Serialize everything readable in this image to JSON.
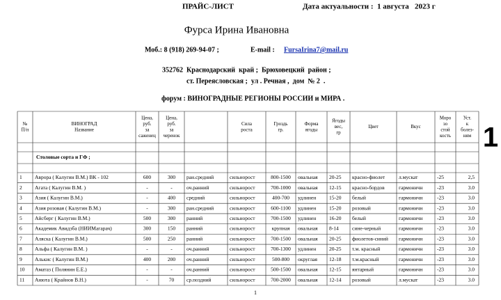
{
  "header": {
    "title": "ПРАЙС-ЛИСТ",
    "date": "Дата актуальности :  1 августа   2023 г",
    "name": "Фурса Ирина Ивановна",
    "phone": "Моб.: 8 (918) 269-94-07 ;",
    "email_label": "E-mail :",
    "email": "FursaIrina7@mail.ru",
    "postcode": "352762",
    "address1": "Краснодарский  край ;  Брюховецкий  район ;",
    "address2": "ст. Переясловская ;  ул . Речная ,  дом  № 2  .",
    "forum": "форум : ВИНОГРАДНЫЕ РЕГИОНЫ РОССИИ и МИРА ."
  },
  "table": {
    "columns": [
      {
        "header": [
          "№",
          "П/п"
        ]
      },
      {
        "header": [
          "ВИНОГРАД",
          "Название"
        ]
      },
      {
        "header": [
          "Цена,",
          "руб.",
          "за",
          "саженец"
        ]
      },
      {
        "header": [
          "Цена,",
          "руб.",
          "за",
          "черенок"
        ]
      },
      {
        "header": []
      },
      {
        "header": [
          "Сила",
          "роста"
        ]
      },
      {
        "header": [
          "Гроздь",
          "гр."
        ]
      },
      {
        "header": [
          "Форма",
          "ягоды"
        ]
      },
      {
        "header": [
          "Ягоды",
          "вес,",
          "гр"
        ]
      },
      {
        "header": [
          "Цвет"
        ]
      },
      {
        "header": [
          "Вкус"
        ]
      },
      {
        "header": [
          "Моро",
          "зо",
          "стой",
          "кость"
        ]
      },
      {
        "header": [
          "Уст.",
          "к",
          "болез-",
          "ням"
        ]
      }
    ],
    "section": "Столовые  сорта и ГФ ;",
    "rows": [
      [
        "1",
        "Аврора  ( Калугин В.М.)  ВК - 102",
        "600",
        "300",
        "ран.средний",
        "сильнорост",
        "800-1500",
        "овальная",
        "20-25",
        "красно-фиолет",
        "л.мускат",
        "-25",
        "2,5"
      ],
      [
        "2",
        "Агата        ( Калугин В.М. )",
        "-",
        "-",
        "оч.ранний",
        "сильнорост",
        "700-1000",
        "овальная",
        "12-15",
        "красно-бордов",
        "гармоничн",
        "-23",
        "3.0"
      ],
      [
        "3",
        "Азия        ( Калугин В.М.)",
        "-",
        "400",
        "средний",
        "сильнорост",
        "400-700",
        "удлинен",
        "15-20",
        "белый",
        "гармоничн",
        "-23",
        "3.0"
      ],
      [
        "4",
        "Азия  розовая  ( Калугин В.М.)",
        "-",
        "300",
        "ран.средний",
        "сильнорост",
        "600-1100",
        "удлинен",
        "15-20",
        "розовый",
        "гармоничн",
        "-23",
        "3.0"
      ],
      [
        "5",
        "Айсберг     ( Калугин В.М.)",
        "500",
        "300",
        "ранний",
        "сильнорост",
        "700-1500",
        "удлинен",
        "16-20",
        "белый",
        "гармоничн",
        "-23",
        "3.0"
      ],
      [
        "6",
        "Академик  Авидзба (НИИМагарач)",
        "300",
        "150",
        "ранний",
        "сильнорост",
        "крупная",
        "овальная",
        "8-14",
        "сине-черный",
        "гармоничн",
        "-23",
        "3.0"
      ],
      [
        "7",
        "Аляска       ( Калугин В.М.)",
        "500",
        "250",
        "ранний",
        "сильнорост",
        "700-1500",
        "овальная",
        "20-25",
        "фиолетов-синий",
        "гармоничн",
        "-23",
        "3.0"
      ],
      [
        "8",
        "Альфа        ( Калугин В.М. )",
        "-",
        "-",
        "оч.ранний",
        "сильнорост",
        "700-1300",
        "удлинен",
        "20-25",
        "т.м. красный",
        "гармоничн",
        "-23",
        "3.0"
      ],
      [
        "9",
        "Алькис     ( Калугин В.М.)",
        "400",
        "200",
        "оч.ранний",
        "сильнорост",
        "500-800",
        "округлая",
        "12-18",
        "т.м.красный",
        "гармоничн",
        "-23",
        "3.0"
      ],
      [
        "10",
        "Аматаз     ( Полянин Е.Е.)",
        "-",
        "-",
        "оч.ранний",
        "сильнорост",
        "500-1500",
        "овальная",
        "12-15",
        "янтарный",
        "гармоничн",
        "-23",
        "3.0"
      ],
      [
        "11",
        "Анюта    ( Крайнов В.Н.)",
        "-",
        "70",
        "ср.поздний",
        "сильнорост",
        "700-2000",
        "овальная",
        "12-14",
        "розовый",
        "л.мускат",
        "-23",
        "3.0"
      ]
    ]
  },
  "side_number": "1",
  "page_number": "1"
}
